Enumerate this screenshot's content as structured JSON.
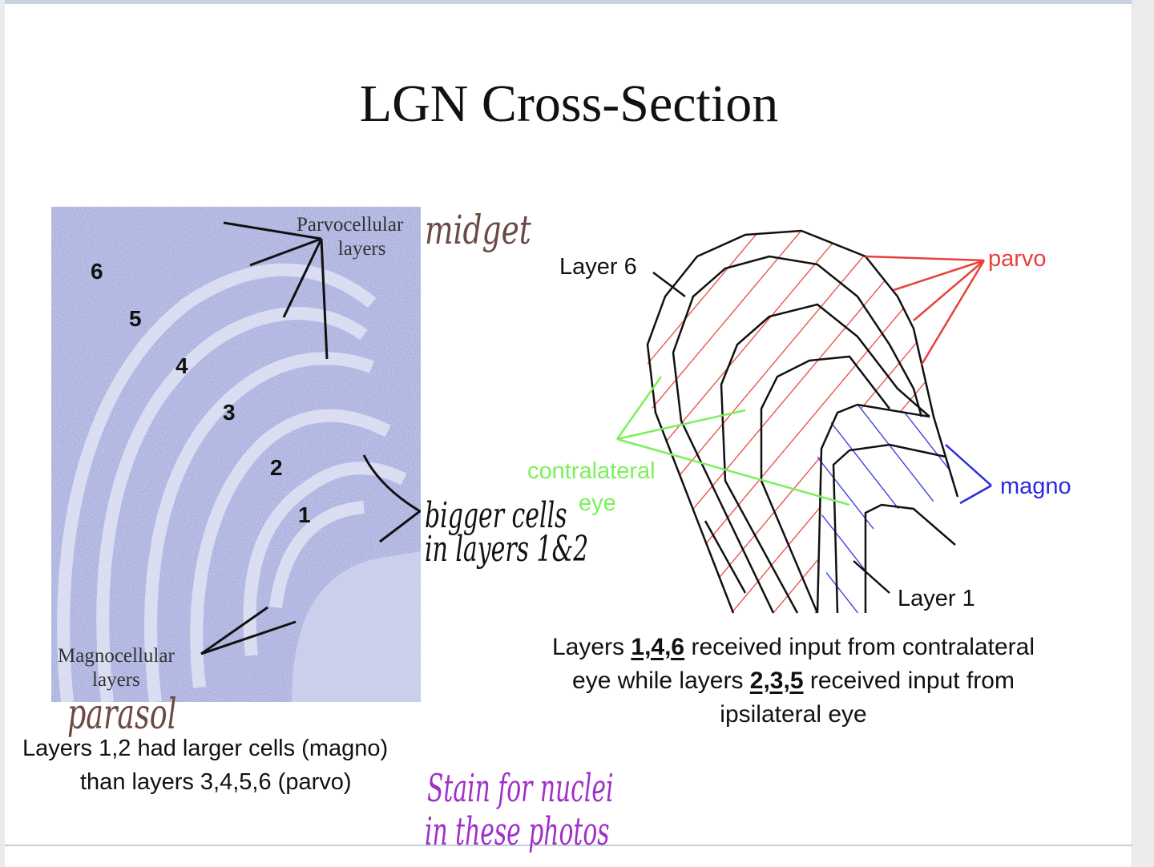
{
  "slide": {
    "title": "LGN Cross-Section",
    "micrograph": {
      "parvo_label_line1": "Parvocellular",
      "parvo_label_line2": "layers",
      "magno_label_line1": "Magnocellular",
      "magno_label_line2": "layers",
      "layer_numbers": [
        "6",
        "5",
        "4",
        "3",
        "2",
        "1"
      ]
    },
    "left_caption": {
      "line1": "Layers 1,2 had larger cells (magno)",
      "line2": "than layers 3,4,5,6 (parvo)"
    },
    "diagram": {
      "layer6_label": "Layer 6",
      "layer1_label": "Layer 1",
      "parvo_label": "parvo",
      "magno_label": "magno",
      "contralateral_label": "contralateral",
      "eye_label": "eye",
      "colors": {
        "parvo": "#e8413a",
        "magno": "#2a2ae0",
        "contralateral": "#7cf05a",
        "outline": "#111111"
      }
    },
    "right_caption": {
      "part1": "Layers ",
      "contra_layers": "1,4,6",
      "part2": " received input from contralateral",
      "part3": "eye while layers ",
      "ipsi_layers": "2,3,5",
      "part4": " received input from",
      "part5": "ipsilateral eye"
    }
  },
  "annotations": {
    "midget": "midget",
    "parasol": "parasol",
    "bigger_cells_line1": "bigger cells",
    "bigger_cells_line2": "in layers 1&2",
    "stain_line1": "Stain for nuclei",
    "stain_line2": "in these photos",
    "colors": {
      "brown": "#6b4a45",
      "purple": "#a030c8",
      "ink": "#111111"
    }
  }
}
